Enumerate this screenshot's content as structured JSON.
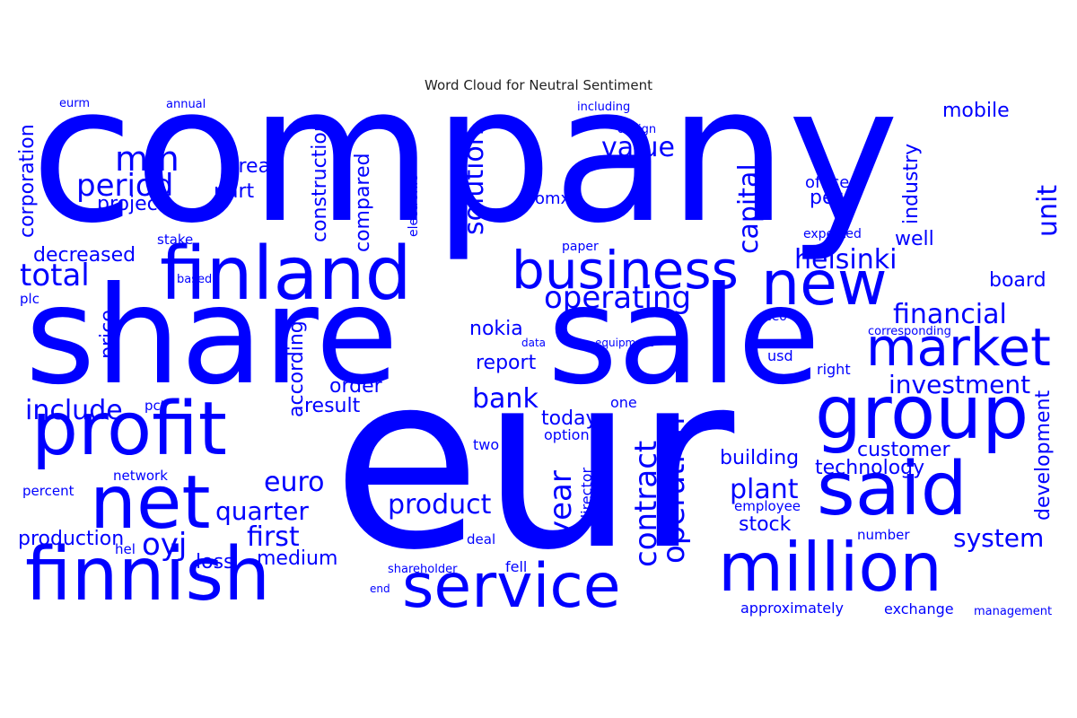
{
  "title": "Word Cloud for Neutral Sentiment",
  "colors": {
    "word": "#0000ff",
    "background": "#ffffff",
    "title": "#222222"
  },
  "words": [
    "company",
    "eur",
    "share",
    "sale",
    "finland",
    "finnish",
    "profit",
    "net",
    "said",
    "group",
    "million",
    "service",
    "new",
    "market",
    "business",
    "helsinki",
    "operating",
    "financial",
    "investment",
    "value",
    "mln",
    "period",
    "area",
    "project",
    "part",
    "total",
    "decreased",
    "include",
    "oyj",
    "quarter",
    "first",
    "euro",
    "product",
    "plant",
    "building",
    "customer",
    "technology",
    "stock",
    "system",
    "development",
    "year",
    "contract",
    "operation",
    "solution",
    "capital",
    "unit",
    "industry",
    "corporation",
    "construction",
    "compared",
    "electronic",
    "according",
    "price",
    "mobile",
    "board",
    "well",
    "office",
    "per",
    "omx",
    "paper",
    "expected",
    "stake",
    "based",
    "plc",
    "ceo",
    "corresponding",
    "right",
    "usd",
    "equipment",
    "data",
    "nokia",
    "report",
    "bank",
    "order",
    "result",
    "today",
    "option",
    "two",
    "director",
    "one",
    "pct",
    "network",
    "percent",
    "production",
    "hel",
    "loss",
    "medium",
    "deal",
    "fell",
    "shareholder",
    "end",
    "approximately",
    "exchange",
    "management",
    "number",
    "employee",
    "eurm",
    "annual",
    "including",
    "design"
  ]
}
